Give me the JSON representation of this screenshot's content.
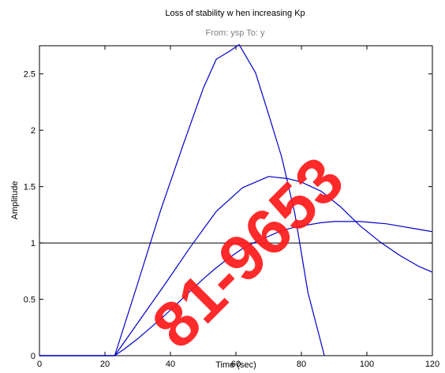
{
  "chart_data": {
    "type": "line",
    "title": "Loss of stability w hen increasing Kp",
    "subtitle": "From: ysp  To: y",
    "xlabel": "Time (sec)",
    "ylabel": "Amplitude",
    "xlim": [
      0,
      120
    ],
    "ylim": [
      0,
      2.75
    ],
    "xticks": [
      "0",
      "20",
      "40",
      "60",
      "80",
      "100",
      "120"
    ],
    "yticks": [
      "0",
      "0.5",
      "1",
      "1.5",
      "2",
      "2.5"
    ],
    "grid": false,
    "legend": "none",
    "reference_line": {
      "y": 1,
      "color": "#000000"
    },
    "series_color": "#0000cc",
    "series": [
      {
        "x": [
          0,
          23,
          26,
          30,
          34,
          38,
          42,
          46,
          50,
          54,
          58,
          62,
          66,
          70,
          74,
          78,
          82,
          86,
          90,
          94,
          98,
          102,
          106,
          110,
          114,
          118,
          120
        ],
        "values": [
          0,
          0,
          0.06,
          0.15,
          0.25,
          0.35,
          0.46,
          0.57,
          0.68,
          0.78,
          0.87,
          0.95,
          1.01,
          1.06,
          1.11,
          1.14,
          1.16,
          1.18,
          1.19,
          1.19,
          1.19,
          1.18,
          1.17,
          1.15,
          1.13,
          1.11,
          1.1
        ]
      },
      {
        "x": [
          0,
          23,
          30,
          38,
          46,
          54,
          62,
          70,
          76,
          80,
          86,
          92,
          98,
          104,
          110,
          116,
          120
        ],
        "values": [
          0,
          0,
          0.29,
          0.62,
          0.96,
          1.28,
          1.49,
          1.59,
          1.57,
          1.54,
          1.46,
          1.32,
          1.15,
          1.01,
          0.89,
          0.79,
          0.74
        ]
      },
      {
        "x": [
          0,
          23,
          30,
          37,
          44,
          50,
          54,
          58,
          61,
          66,
          70,
          74,
          78,
          82,
          87
        ],
        "values": [
          0,
          0,
          0.64,
          1.29,
          1.88,
          2.37,
          2.63,
          2.7,
          2.76,
          2.51,
          2.14,
          1.76,
          1.26,
          0.56,
          0
        ]
      }
    ]
  },
  "watermark": {
    "text": "81-9653",
    "color": "#ff1a1a"
  }
}
